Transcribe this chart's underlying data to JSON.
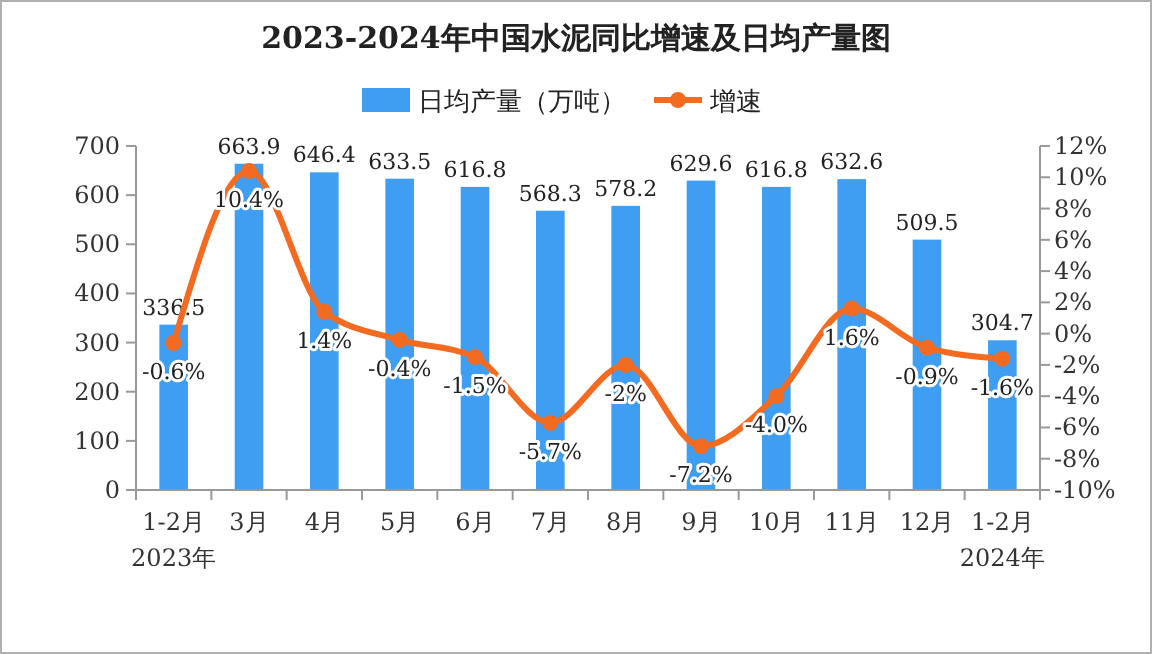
{
  "chart_data": {
    "type": "bar",
    "title": "2023-2024年中国水泥同比增速及日均产量图",
    "categories": [
      "1-2月\n2023年",
      "3月",
      "4月",
      "5月",
      "6月",
      "7月",
      "8月",
      "9月",
      "10月",
      "11月",
      "12月",
      "1-2月\n2024年"
    ],
    "series": [
      {
        "name": "日均产量（万吨）",
        "color": "#3f9ef2",
        "values": [
          336.5,
          663.9,
          646.4,
          633.5,
          616.8,
          568.3,
          578.2,
          629.6,
          616.8,
          632.6,
          509.5,
          304.7
        ],
        "value_labels": [
          "336.5",
          "663.9",
          "646.4",
          "633.5",
          "616.8",
          "568.3",
          "578.2",
          "629.6",
          "616.8",
          "632.6",
          "509.5",
          "304.7"
        ]
      },
      {
        "name": "增速",
        "type": "line",
        "axis": "y2",
        "color": "#f26b21",
        "marker": "circle",
        "values": [
          -0.6,
          10.4,
          1.4,
          -0.4,
          -1.5,
          -5.7,
          -2,
          -7.2,
          -4.0,
          1.6,
          -0.9,
          -1.6
        ],
        "value_labels": [
          "-0.6%",
          "10.4%",
          "1.4%",
          "-0.4%",
          "-1.5%",
          "-5.7%",
          "-2%",
          "-7.2%",
          "-4.0%",
          "1.6%",
          "-0.9%",
          "-1.6%"
        ]
      }
    ],
    "ylim": [
      0,
      700
    ],
    "yticks": [
      0,
      100,
      200,
      300,
      400,
      500,
      600,
      700
    ],
    "y2lim": [
      -10,
      12
    ],
    "y2ticks": [
      {
        "value": -10,
        "label": "-10%"
      },
      {
        "value": -8,
        "label": "-8%"
      },
      {
        "value": -6,
        "label": "-6%"
      },
      {
        "value": -4,
        "label": "-4%"
      },
      {
        "value": -2,
        "label": "-2%"
      },
      {
        "value": 0,
        "label": "0%"
      },
      {
        "value": 2,
        "label": "2%"
      },
      {
        "value": 4,
        "label": "4%"
      },
      {
        "value": 6,
        "label": "6%"
      },
      {
        "value": 8,
        "label": "8%"
      },
      {
        "value": 10,
        "label": "10%"
      },
      {
        "value": 12,
        "label": "12%"
      }
    ],
    "legend": "top",
    "grid": false
  }
}
